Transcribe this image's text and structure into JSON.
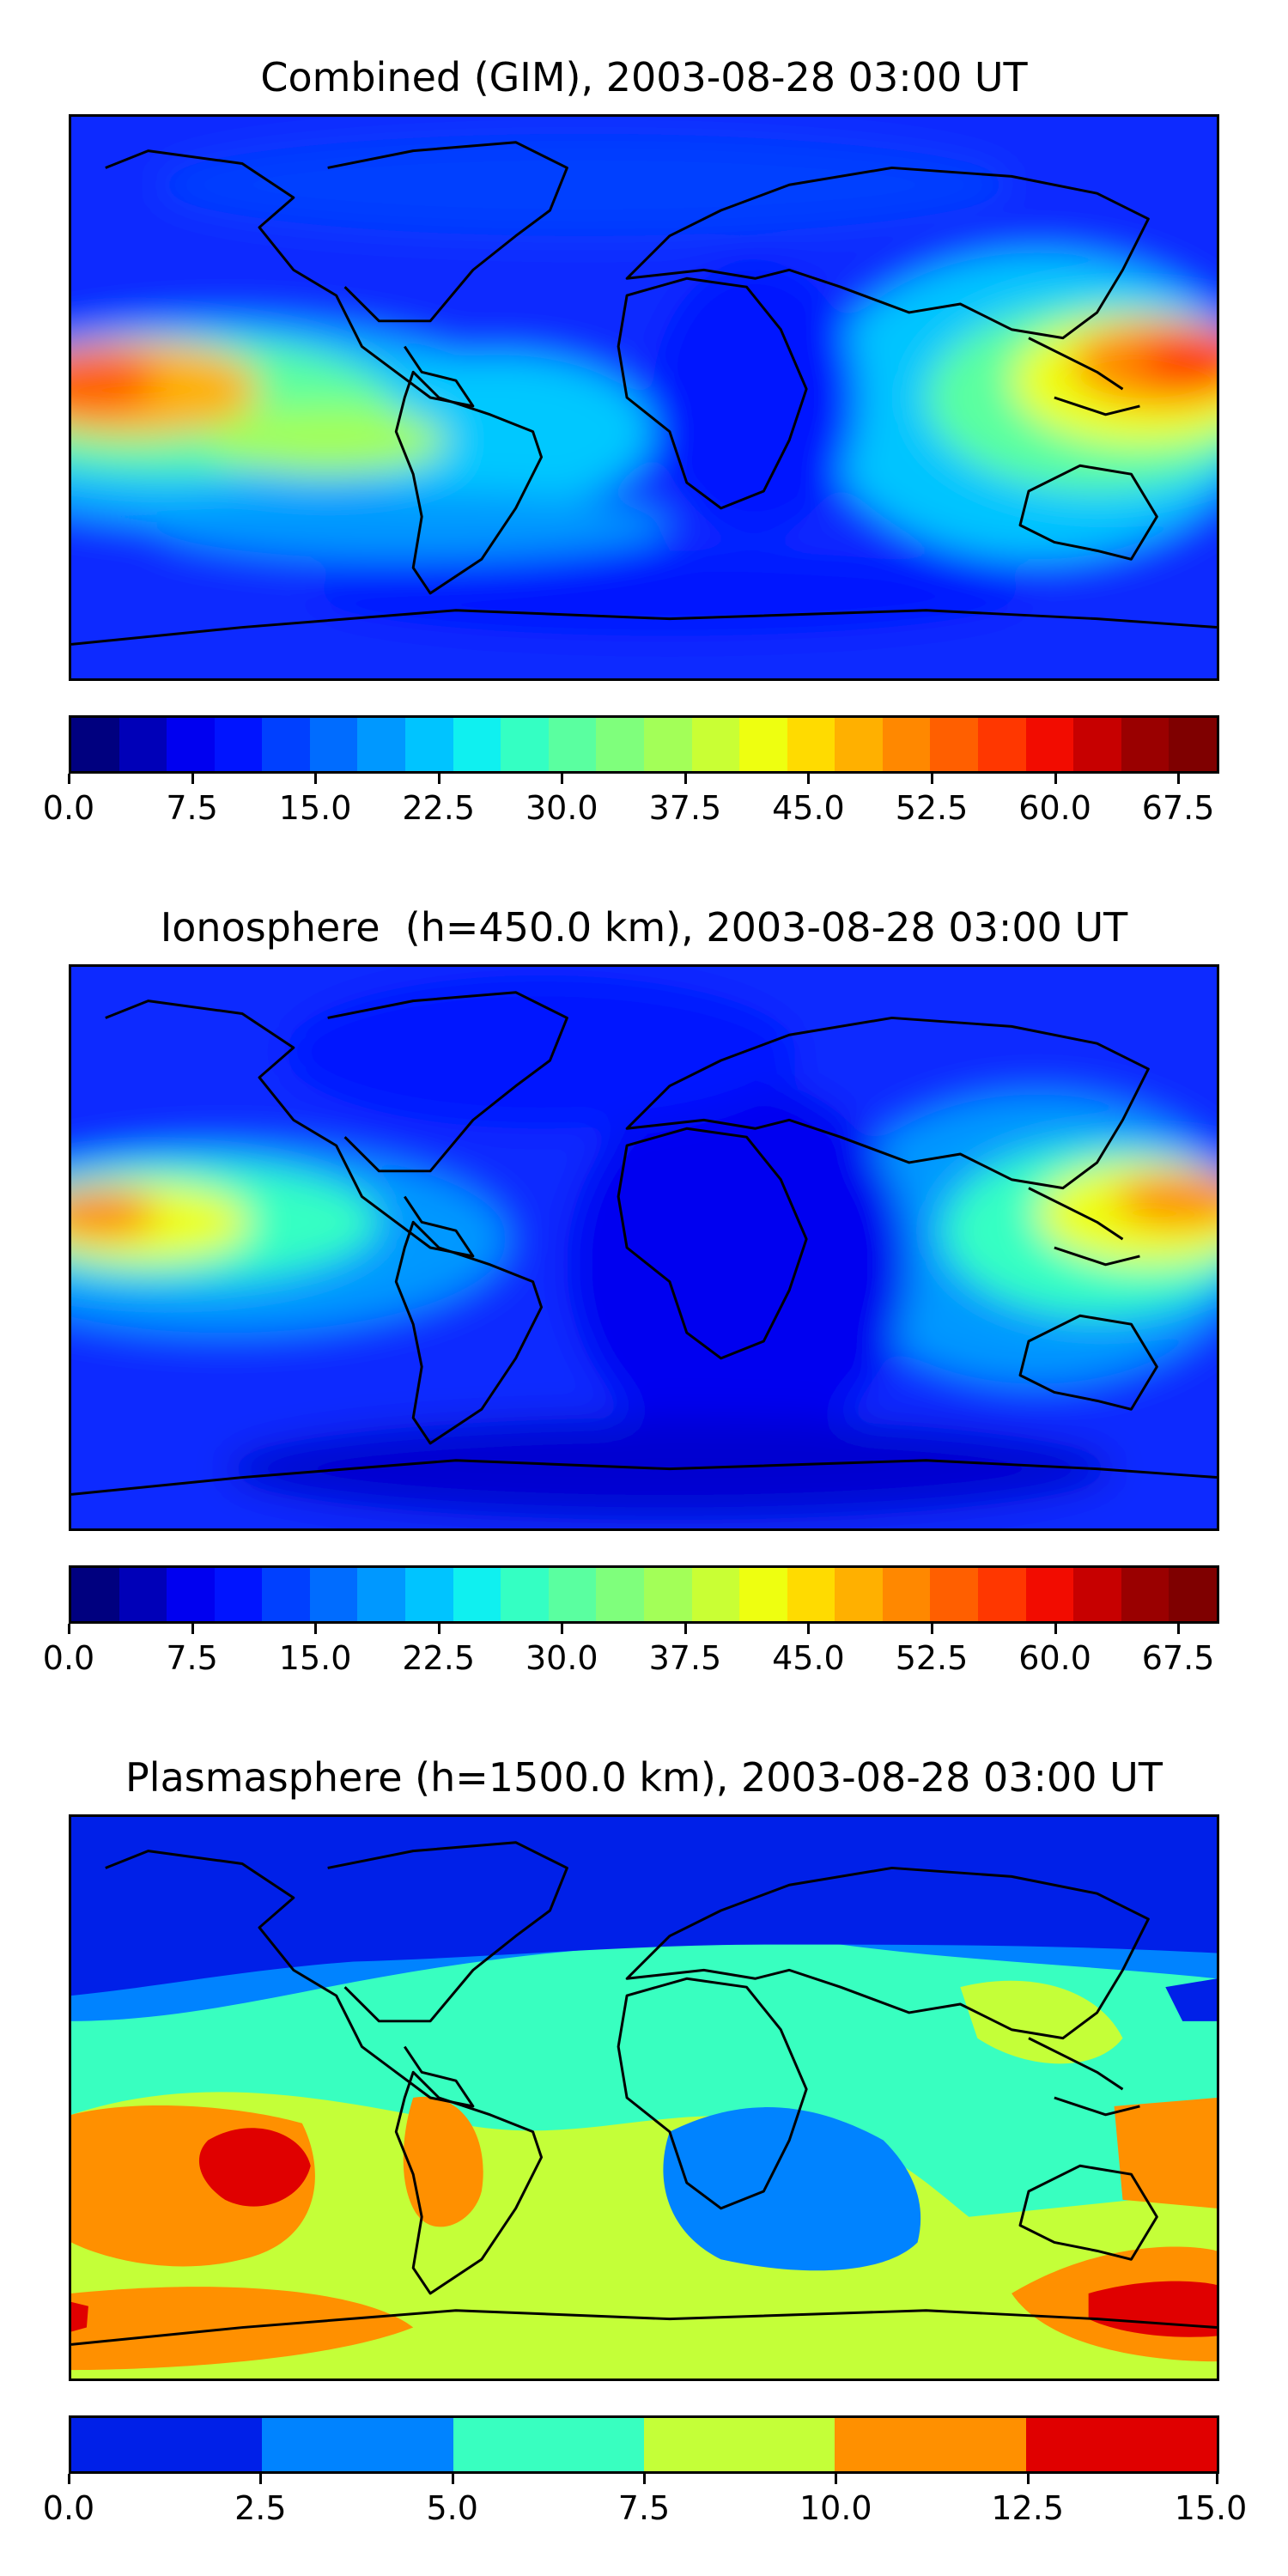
{
  "panels": [
    {
      "title": "Combined (GIM), 2003-08-28 03:00 UT",
      "colorbar": {
        "colors": [
          "#00007f",
          "#0000b8",
          "#0000f0",
          "#0014ff",
          "#0040ff",
          "#006cff",
          "#0098ff",
          "#00c4ff",
          "#0ff0f0",
          "#34ffc3",
          "#5affa0",
          "#7fff7c",
          "#a3ff58",
          "#c9ff34",
          "#eeff10",
          "#ffdb00",
          "#ffb000",
          "#ff8800",
          "#ff5f00",
          "#ff3700",
          "#f20c00",
          "#c70000",
          "#9a0000",
          "#7f0000"
        ],
        "ticks": [
          "0.0",
          "7.5",
          "15.0",
          "22.5",
          "30.0",
          "37.5",
          "45.0",
          "52.5",
          "60.0",
          "67.5"
        ],
        "range": [
          0,
          70
        ]
      }
    },
    {
      "title": "Ionosphere  (h=450.0 km), 2003-08-28 03:00 UT",
      "colorbar": {
        "colors": [
          "#00007f",
          "#0000b8",
          "#0000f0",
          "#0014ff",
          "#0040ff",
          "#006cff",
          "#0098ff",
          "#00c4ff",
          "#0ff0f0",
          "#34ffc3",
          "#5affa0",
          "#7fff7c",
          "#a3ff58",
          "#c9ff34",
          "#eeff10",
          "#ffdb00",
          "#ffb000",
          "#ff8800",
          "#ff5f00",
          "#ff3700",
          "#f20c00",
          "#c70000",
          "#9a0000",
          "#7f0000"
        ],
        "ticks": [
          "0.0",
          "7.5",
          "15.0",
          "22.5",
          "30.0",
          "37.5",
          "45.0",
          "52.5",
          "60.0",
          "67.5"
        ],
        "range": [
          0,
          70
        ]
      }
    },
    {
      "title": "Plasmasphere (h=1500.0 km), 2003-08-28 03:00 UT",
      "colorbar": {
        "colors": [
          "#0020e8",
          "#0083ff",
          "#38ffc0",
          "#c4ff38",
          "#ff9000",
          "#e00000"
        ],
        "ticks": [
          "0.0",
          "2.5",
          "5.0",
          "7.5",
          "10.0",
          "12.5",
          "15.0"
        ],
        "range": [
          0,
          15
        ]
      }
    }
  ]
}
